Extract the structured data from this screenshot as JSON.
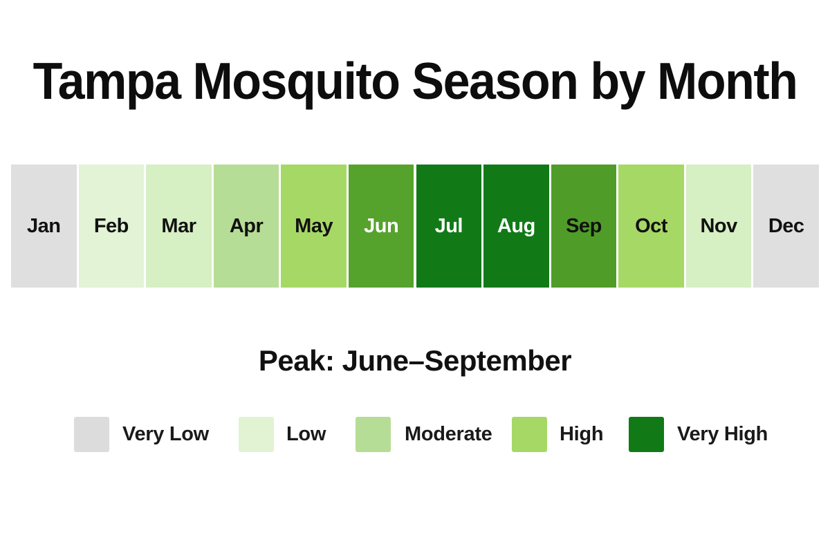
{
  "chart_data": {
    "type": "heatmap",
    "title": "Tampa Mosquito Season by Month",
    "categories": [
      "Jan",
      "Feb",
      "Mar",
      "Apr",
      "May",
      "Jun",
      "Jul",
      "Aug",
      "Sep",
      "Oct",
      "Nov",
      "Dec"
    ],
    "levels": [
      "Very Low",
      "Low",
      "Moderate",
      "High",
      "Very High"
    ],
    "values": [
      "Very Low",
      "Low",
      "Low",
      "Moderate",
      "High",
      "Very High",
      "Very High",
      "Very High",
      "Very High",
      "High",
      "Low",
      "Very Low"
    ],
    "cell_colors": [
      "#dfdfdf",
      "#e3f3d5",
      "#d6efc3",
      "#b6dd95",
      "#a6d865",
      "#55a32c",
      "#117a17",
      "#117a17",
      "#4f9d28",
      "#a6d865",
      "#d6efc3",
      "#dfdfdf"
    ],
    "label_colors": [
      "#111111",
      "#111111",
      "#111111",
      "#111111",
      "#111111",
      "#ffffff",
      "#ffffff",
      "#ffffff",
      "#111111",
      "#111111",
      "#111111",
      "#111111"
    ],
    "annotation": "Peak: June–September",
    "legend": {
      "placement": "bottom",
      "items": [
        {
          "label": "Very Low",
          "color": "#dcdcdc"
        },
        {
          "label": "Low",
          "color": "#e2f3d4"
        },
        {
          "label": "Moderate",
          "color": "#b6dd95"
        },
        {
          "label": "High",
          "color": "#a6d865"
        },
        {
          "label": "Very High",
          "color": "#117a17"
        }
      ]
    }
  }
}
